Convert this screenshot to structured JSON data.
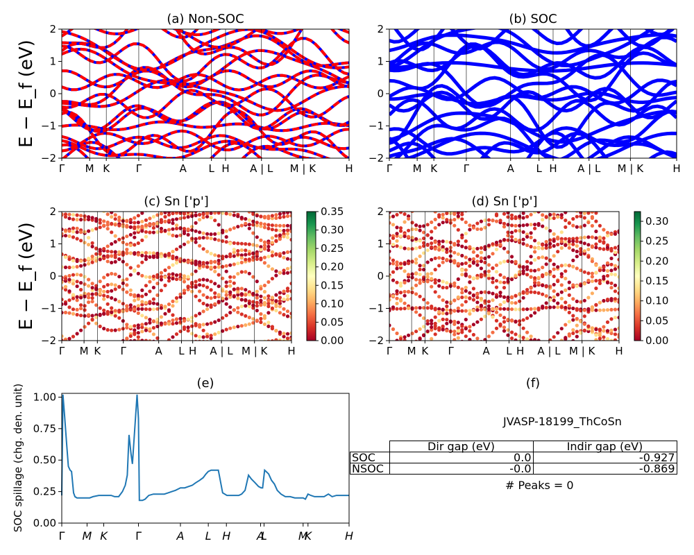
{
  "colors": {
    "nonsoc_red": "#ff0000",
    "nonsoc_blue": "#0000ff",
    "soc_blue": "#0000ff",
    "spillage_line": "#1f77b4"
  },
  "panels": {
    "a": {
      "title": "(a) Non-SOC",
      "ylabel": "E − E_f (eV)"
    },
    "b": {
      "title": "(b) SOC"
    },
    "c": {
      "title": "(c)  Sn ['p']",
      "ylabel": "E − E_f (eV)",
      "colorbar_ticks": [
        "0.35",
        "0.30",
        "0.25",
        "0.20",
        "0.15",
        "0.10",
        "0.05",
        "0.00"
      ]
    },
    "d": {
      "title": "(d) Sn ['p']",
      "colorbar_ticks": [
        "0.30",
        "0.25",
        "0.20",
        "0.15",
        "0.10",
        "0.05",
        "0.00"
      ]
    },
    "e": {
      "title": "(e)",
      "ylabel": "SOC spillage (chg. den. unit)"
    },
    "f": {
      "title": "(f)",
      "material": "JVASP-18199_ThCoSn",
      "peaks_text": "# Peaks = 0",
      "table": {
        "headers": [
          "Dir gap (eV)",
          "Indir gap (eV)"
        ],
        "rows": [
          {
            "label": "SOC",
            "dir": "0.0",
            "indir": "-0.927"
          },
          {
            "label": "NSOC",
            "dir": "-0.0",
            "indir": "-0.869"
          }
        ]
      }
    }
  },
  "chart_data": [
    {
      "panel": "a",
      "type": "line",
      "title": "(a) Non-SOC",
      "ylabel": "E − E_f (eV)",
      "ylim": [
        -2,
        2
      ],
      "yticks": [
        "2",
        "1",
        "0",
        "−1",
        "−2"
      ],
      "kpath_labels": [
        "Γ",
        "M",
        "K",
        "Γ",
        "A",
        "L",
        "H",
        "A | L",
        "M | K",
        "H"
      ],
      "series": [
        {
          "color": "red/blue dashed"
        }
      ]
    },
    {
      "panel": "b",
      "type": "line",
      "title": "(b) SOC",
      "ylim": [
        -2,
        2
      ],
      "yticks": [
        "2",
        "1",
        "0",
        "−1",
        "−2"
      ],
      "kpath_labels": [
        "Γ",
        "M",
        "K",
        "Γ",
        "A",
        "L",
        "H",
        "A | L",
        "M | K",
        "H"
      ],
      "series": [
        {
          "color": "blue"
        }
      ]
    },
    {
      "panel": "c",
      "type": "scatter",
      "title": "(c)  Sn ['p']",
      "ylabel": "E − E_f (eV)",
      "ylim": [
        -2,
        2
      ],
      "yticks": [
        "2",
        "1",
        "0",
        "−1",
        "−2"
      ],
      "kpath_labels": [
        "Γ",
        "M",
        "K",
        "Γ",
        "A",
        "L",
        "H",
        "A | L",
        "M | K",
        "H"
      ],
      "colorbar": {
        "min": 0.0,
        "max": 0.35,
        "colormap": "RdYlGn"
      }
    },
    {
      "panel": "d",
      "type": "scatter",
      "title": "(d) Sn ['p']",
      "ylim": [
        -2,
        2
      ],
      "yticks": [
        "2",
        "1",
        "0",
        "−1",
        "−2"
      ],
      "kpath_labels": [
        "Γ",
        "M",
        "K",
        "Γ",
        "A",
        "L",
        "H",
        "A | L",
        "M | K",
        "H"
      ],
      "colorbar": {
        "min": 0.0,
        "max": 0.33,
        "colormap": "RdYlGn"
      }
    },
    {
      "panel": "e",
      "type": "line",
      "title": "(e)",
      "ylabel": "SOC spillage (chg. den. unit)",
      "ylim": [
        0,
        1.03
      ],
      "yticks": [
        "0.00",
        "0.25",
        "0.50",
        "0.75",
        "1.00"
      ],
      "xlim": [
        0,
        100
      ],
      "kpath_labels": [
        "Γ",
        "M",
        "K",
        "Γ",
        "A",
        "L",
        "H",
        "A",
        "L",
        "M",
        "K",
        "H"
      ],
      "kpath_positions": [
        0,
        8.8,
        14.6,
        26.7,
        41.3,
        51.0,
        57.3,
        69.2,
        70.4,
        84.0,
        85.7,
        100
      ],
      "series": [
        {
          "x": [
            0,
            0.4,
            1.0,
            1.7,
            2.3,
            2.9,
            3.4,
            4.1,
            4.6,
            5.3,
            6.5,
            7.8,
            9.7,
            10.9,
            12.9,
            14.6,
            16.0,
            17.2,
            18.4,
            19.8,
            21.1,
            22.1,
            22.8,
            23.4,
            24.1,
            24.6,
            25.4,
            26.2,
            26.7,
            27.0,
            27.4,
            28.1,
            29.0,
            30.3,
            31.9,
            33.4,
            34.4,
            35.7,
            37.0,
            38.3,
            39.6,
            41.3,
            42.8,
            44.1,
            45.4,
            46.6,
            48.0,
            49.2,
            50.2,
            51.0,
            52.0,
            53.0,
            54.5,
            56.0,
            57.5,
            59.0,
            60.5,
            61.6,
            62.6,
            63.8,
            65.0,
            66.0,
            67.3,
            68.5,
            69.4,
            69.9,
            70.6,
            71.1,
            72.0,
            73.0,
            74.0,
            75.0,
            76.3,
            77.8,
            79.5,
            81.1,
            82.7,
            84.0,
            84.8,
            85.7,
            86.7,
            88.0,
            89.4,
            91.3,
            92.8,
            94.1,
            95.6,
            97.2,
            98.7,
            100
          ],
          "y": [
            0.22,
            1.02,
            0.85,
            0.63,
            0.45,
            0.42,
            0.41,
            0.24,
            0.21,
            0.2,
            0.2,
            0.2,
            0.2,
            0.21,
            0.22,
            0.22,
            0.22,
            0.22,
            0.21,
            0.21,
            0.25,
            0.3,
            0.38,
            0.7,
            0.55,
            0.47,
            0.75,
            1.02,
            0.83,
            0.18,
            0.18,
            0.18,
            0.19,
            0.22,
            0.23,
            0.23,
            0.23,
            0.23,
            0.24,
            0.25,
            0.26,
            0.28,
            0.28,
            0.29,
            0.3,
            0.32,
            0.34,
            0.36,
            0.39,
            0.41,
            0.42,
            0.42,
            0.42,
            0.24,
            0.22,
            0.22,
            0.22,
            0.22,
            0.23,
            0.26,
            0.38,
            0.35,
            0.32,
            0.29,
            0.28,
            0.28,
            0.42,
            0.41,
            0.39,
            0.34,
            0.31,
            0.26,
            0.23,
            0.21,
            0.21,
            0.2,
            0.2,
            0.2,
            0.19,
            0.23,
            0.22,
            0.21,
            0.21,
            0.21,
            0.23,
            0.21,
            0.22,
            0.22,
            0.22,
            0.22
          ]
        }
      ]
    }
  ]
}
